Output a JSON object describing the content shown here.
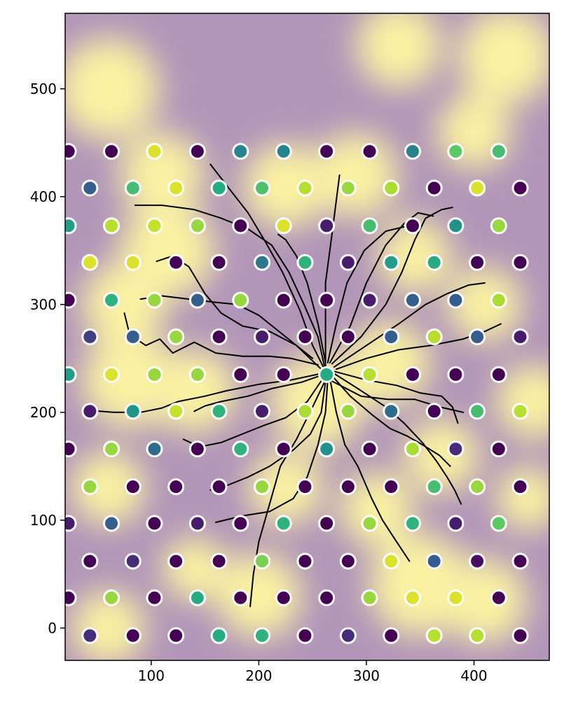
{
  "chart_data": {
    "type": "scatter",
    "title": "",
    "xlabel": "",
    "ylabel": "",
    "xlim": [
      20,
      470
    ],
    "ylim": [
      -30,
      570
    ],
    "xticks": [
      100,
      200,
      300,
      400
    ],
    "yticks": [
      0,
      100,
      200,
      300,
      400,
      500
    ],
    "grid": false,
    "legend": "none",
    "colormap": "viridis",
    "background": "smoothed heatmap (viridis, semi-transparent)",
    "dot_edge_color": "#ffffff",
    "trace_color": "#000000",
    "grid_points": {
      "row_y": [
        442,
        408,
        373,
        339,
        304,
        270,
        235,
        201,
        166,
        131,
        97,
        62,
        28,
        -7
      ],
      "even_row_x": [
        23,
        63,
        103,
        143,
        183,
        223,
        263,
        303,
        343,
        383,
        423
      ],
      "odd_row_x": [
        43,
        83,
        123,
        163,
        203,
        243,
        283,
        323,
        363,
        403,
        443
      ],
      "values": [
        [
          0.0,
          0.0,
          0.95,
          0.0,
          0.45,
          0.45,
          0.0,
          0.0,
          0.45,
          0.75,
          0.7
        ],
        [
          0.3,
          0.7,
          0.95,
          0.62,
          0.72,
          0.9,
          0.85,
          0.88,
          0.0,
          0.95,
          0.0
        ],
        [
          0.55,
          0.9,
          0.92,
          0.85,
          0.0,
          0.95,
          0.1,
          0.7,
          0.0,
          0.5,
          0.85
        ],
        [
          0.95,
          0.95,
          0.0,
          0.0,
          0.4,
          0.65,
          0.1,
          0.55,
          0.62,
          0.0,
          0.0
        ],
        [
          0.0,
          0.65,
          0.85,
          0.3,
          0.85,
          0.0,
          0.0,
          0.1,
          0.3,
          0.3,
          0.88
        ],
        [
          0.2,
          0.3,
          0.85,
          0.0,
          0.1,
          0.0,
          0.0,
          0.3,
          0.9,
          0.3,
          0.1
        ],
        [
          0.55,
          0.95,
          0.85,
          0.85,
          0.0,
          0.0,
          0.62,
          0.9,
          0.0,
          0.0,
          0.0
        ],
        [
          0.1,
          0.52,
          0.92,
          0.65,
          0.1,
          0.88,
          0.85,
          0.35,
          0.0,
          0.7,
          0.9
        ],
        [
          0.0,
          0.85,
          0.35,
          0.0,
          0.65,
          0.0,
          0.5,
          0.0,
          0.88,
          0.15,
          0.0
        ],
        [
          0.85,
          0.0,
          0.0,
          0.0,
          0.85,
          0.0,
          0.0,
          0.0,
          0.7,
          0.85,
          0.0
        ],
        [
          0.1,
          0.3,
          0.0,
          0.1,
          0.0,
          0.65,
          0.0,
          0.85,
          0.65,
          0.1,
          0.75
        ],
        [
          0.0,
          0.15,
          0.0,
          0.0,
          0.8,
          0.0,
          0.0,
          0.95,
          0.3,
          0.05,
          0.0
        ],
        [
          0.0,
          0.85,
          0.0,
          0.62,
          0.0,
          0.0,
          0.0,
          0.85,
          0.95,
          0.95,
          0.0
        ],
        [
          0.15,
          0.0,
          0.0,
          0.62,
          0.65,
          0.0,
          0.15,
          0.0,
          0.9,
          0.9,
          0.0
        ]
      ]
    },
    "heatmap_hotspots": [
      {
        "x": 60,
        "y": 500,
        "r": 48
      },
      {
        "x": 110,
        "y": 420,
        "r": 40
      },
      {
        "x": 115,
        "y": 350,
        "r": 45
      },
      {
        "x": 75,
        "y": 300,
        "r": 40
      },
      {
        "x": 80,
        "y": 230,
        "r": 45
      },
      {
        "x": 140,
        "y": 220,
        "r": 40
      },
      {
        "x": 330,
        "y": 540,
        "r": 40
      },
      {
        "x": 430,
        "y": 530,
        "r": 45
      },
      {
        "x": 400,
        "y": 460,
        "r": 35
      },
      {
        "x": 225,
        "y": 410,
        "r": 40
      },
      {
        "x": 290,
        "y": 420,
        "r": 40
      },
      {
        "x": 345,
        "y": 345,
        "r": 35
      },
      {
        "x": 410,
        "y": 300,
        "r": 35
      },
      {
        "x": 320,
        "y": 245,
        "r": 40
      },
      {
        "x": 255,
        "y": 210,
        "r": 45
      },
      {
        "x": 455,
        "y": 210,
        "r": 35
      },
      {
        "x": 370,
        "y": 160,
        "r": 35
      },
      {
        "x": 60,
        "y": 130,
        "r": 35
      },
      {
        "x": 225,
        "y": 130,
        "r": 35
      },
      {
        "x": 310,
        "y": 110,
        "r": 35
      },
      {
        "x": 350,
        "y": 40,
        "r": 48
      },
      {
        "x": 410,
        "y": 25,
        "r": 40
      },
      {
        "x": 200,
        "y": 30,
        "r": 40
      },
      {
        "x": 140,
        "y": 55,
        "r": 30
      },
      {
        "x": 60,
        "y": 0,
        "r": 35
      },
      {
        "x": 450,
        "y": 120,
        "r": 30
      }
    ],
    "traces": [
      [
        [
          262,
          238
        ],
        [
          250,
          262
        ],
        [
          238,
          295
        ],
        [
          222,
          330
        ],
        [
          205,
          360
        ],
        [
          190,
          385
        ],
        [
          172,
          408
        ],
        [
          155,
          430
        ]
      ],
      [
        [
          262,
          238
        ],
        [
          262,
          280
        ],
        [
          262,
          320
        ],
        [
          268,
          365
        ],
        [
          275,
          420
        ]
      ],
      [
        [
          262,
          238
        ],
        [
          255,
          270
        ],
        [
          242,
          300
        ],
        [
          228,
          330
        ],
        [
          212,
          355
        ],
        [
          190,
          370
        ],
        [
          165,
          380
        ],
        [
          140,
          388
        ],
        [
          110,
          392
        ],
        [
          85,
          392
        ]
      ],
      [
        [
          258,
          240
        ],
        [
          235,
          262
        ],
        [
          210,
          275
        ],
        [
          185,
          280
        ],
        [
          165,
          292
        ],
        [
          150,
          310
        ],
        [
          135,
          335
        ],
        [
          120,
          345
        ],
        [
          105,
          340
        ]
      ],
      [
        [
          250,
          250
        ],
        [
          225,
          270
        ],
        [
          200,
          290
        ],
        [
          180,
          300
        ],
        [
          160,
          302
        ],
        [
          135,
          305
        ],
        [
          110,
          308
        ],
        [
          90,
          305
        ]
      ],
      [
        [
          255,
          244
        ],
        [
          230,
          250
        ],
        [
          210,
          252
        ],
        [
          185,
          252
        ],
        [
          160,
          255
        ],
        [
          140,
          265
        ],
        [
          120,
          255
        ],
        [
          108,
          268
        ],
        [
          95,
          262
        ],
        [
          80,
          272
        ],
        [
          75,
          292
        ]
      ],
      [
        [
          258,
          236
        ],
        [
          230,
          230
        ],
        [
          200,
          226
        ],
        [
          170,
          220
        ],
        [
          150,
          215
        ],
        [
          125,
          210
        ],
        [
          110,
          204
        ],
        [
          90,
          200
        ],
        [
          65,
          200
        ],
        [
          40,
          202
        ]
      ],
      [
        [
          260,
          235
        ],
        [
          240,
          228
        ],
        [
          212,
          222
        ],
        [
          190,
          215
        ],
        [
          165,
          210
        ],
        [
          150,
          206
        ],
        [
          140,
          201
        ]
      ],
      [
        [
          260,
          232
        ],
        [
          245,
          210
        ],
        [
          225,
          195
        ],
        [
          205,
          188
        ],
        [
          185,
          180
        ],
        [
          165,
          172
        ],
        [
          145,
          168
        ],
        [
          130,
          175
        ]
      ],
      [
        [
          262,
          228
        ],
        [
          258,
          200
        ],
        [
          248,
          180
        ],
        [
          232,
          165
        ],
        [
          210,
          150
        ],
        [
          190,
          140
        ],
        [
          170,
          132
        ],
        [
          155,
          128
        ]
      ],
      [
        [
          262,
          230
        ],
        [
          250,
          205
        ],
        [
          235,
          175
        ],
        [
          220,
          150
        ],
        [
          210,
          115
        ],
        [
          200,
          80
        ],
        [
          195,
          50
        ],
        [
          192,
          20
        ]
      ],
      [
        [
          264,
          230
        ],
        [
          262,
          200
        ],
        [
          255,
          170
        ],
        [
          245,
          140
        ],
        [
          232,
          120
        ],
        [
          210,
          108
        ],
        [
          185,
          104
        ],
        [
          160,
          98
        ]
      ],
      [
        [
          266,
          232
        ],
        [
          272,
          200
        ],
        [
          280,
          170
        ],
        [
          292,
          150
        ],
        [
          305,
          120
        ],
        [
          315,
          100
        ],
        [
          328,
          80
        ],
        [
          340,
          62
        ]
      ],
      [
        [
          268,
          234
        ],
        [
          285,
          215
        ],
        [
          305,
          198
        ],
        [
          322,
          185
        ],
        [
          338,
          178
        ],
        [
          352,
          170
        ],
        [
          368,
          160
        ],
        [
          378,
          150
        ]
      ],
      [
        [
          270,
          236
        ],
        [
          292,
          222
        ],
        [
          318,
          205
        ],
        [
          335,
          190
        ],
        [
          352,
          172
        ],
        [
          365,
          155
        ],
        [
          375,
          140
        ],
        [
          382,
          128
        ],
        [
          388,
          115
        ]
      ],
      [
        [
          270,
          238
        ],
        [
          300,
          230
        ],
        [
          328,
          225
        ],
        [
          350,
          218
        ],
        [
          370,
          215
        ],
        [
          380,
          205
        ],
        [
          385,
          190
        ]
      ],
      [
        [
          272,
          240
        ],
        [
          300,
          250
        ],
        [
          330,
          258
        ],
        [
          360,
          262
        ],
        [
          390,
          268
        ],
        [
          410,
          275
        ],
        [
          425,
          282
        ]
      ],
      [
        [
          270,
          242
        ],
        [
          300,
          262
        ],
        [
          330,
          282
        ],
        [
          355,
          300
        ],
        [
          375,
          310
        ],
        [
          395,
          318
        ],
        [
          410,
          320
        ]
      ],
      [
        [
          268,
          245
        ],
        [
          295,
          270
        ],
        [
          318,
          300
        ],
        [
          333,
          330
        ],
        [
          345,
          360
        ],
        [
          355,
          380
        ],
        [
          370,
          388
        ],
        [
          380,
          390
        ]
      ],
      [
        [
          266,
          246
        ],
        [
          285,
          280
        ],
        [
          300,
          320
        ],
        [
          318,
          355
        ],
        [
          335,
          375
        ],
        [
          348,
          385
        ],
        [
          362,
          382
        ]
      ],
      [
        [
          264,
          246
        ],
        [
          272,
          282
        ],
        [
          282,
          320
        ],
        [
          298,
          350
        ],
        [
          318,
          368
        ],
        [
          335,
          372
        ]
      ],
      [
        [
          262,
          246
        ],
        [
          255,
          282
        ],
        [
          245,
          320
        ],
        [
          235,
          345
        ],
        [
          225,
          360
        ],
        [
          218,
          365
        ]
      ],
      [
        [
          266,
          230
        ],
        [
          295,
          215
        ],
        [
          320,
          212
        ],
        [
          345,
          212
        ],
        [
          368,
          205
        ],
        [
          390,
          200
        ]
      ]
    ]
  }
}
